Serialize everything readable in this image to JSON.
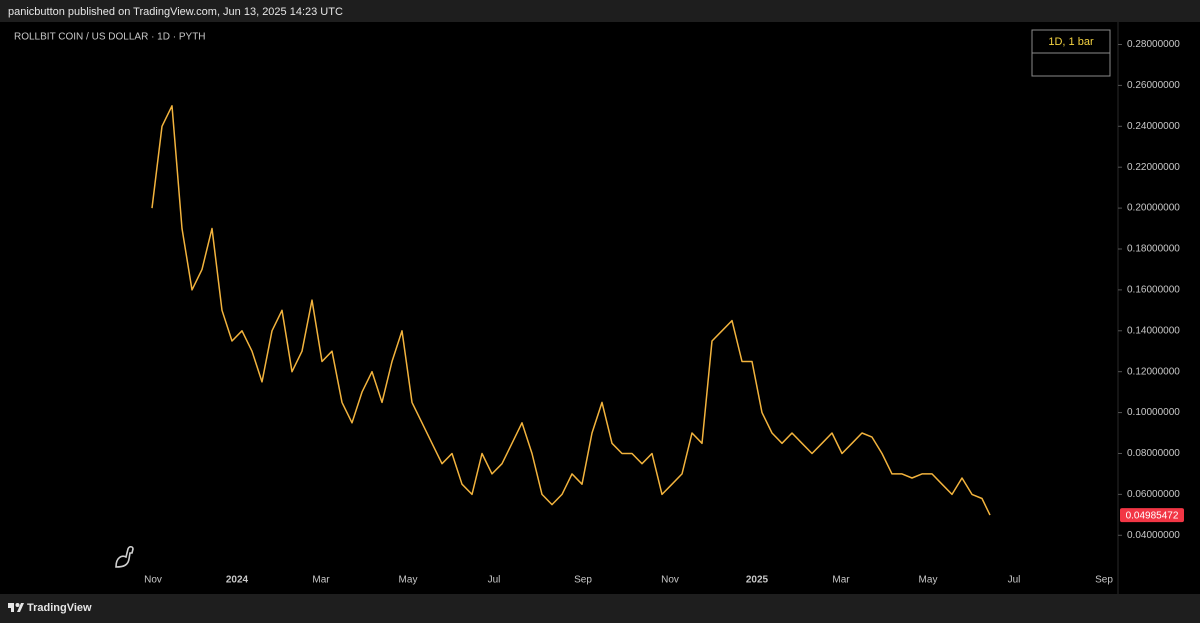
{
  "header": {
    "text": "panicbutton published on TradingView.com, Jun 13, 2025 14:23 UTC"
  },
  "footer": {
    "brand": "TradingView"
  },
  "chart_data": {
    "type": "line",
    "title": "ROLLBIT COIN / US DOLLAR · 1D · PYTH",
    "legend_box": "1D, 1 bar",
    "x": [
      0,
      1,
      2,
      3,
      4,
      5,
      6,
      7,
      8,
      9,
      10,
      11,
      12,
      13,
      14,
      15,
      16,
      17,
      18,
      19,
      20,
      21,
      22,
      23,
      24,
      25,
      26,
      27,
      28,
      29,
      30,
      31,
      32,
      33,
      34,
      35,
      36,
      37,
      38,
      39,
      40,
      41,
      42,
      43,
      44,
      45,
      46,
      47,
      48,
      49,
      50,
      51,
      52,
      53,
      54,
      55,
      56,
      57,
      58,
      59,
      60,
      61,
      62,
      63,
      64,
      65,
      66,
      67,
      68,
      69,
      70,
      71,
      72,
      73,
      74,
      75,
      76,
      77,
      78,
      79,
      80,
      81,
      82,
      83,
      83.8
    ],
    "series": [
      {
        "color": "#f2b33d",
        "values": [
          0.2,
          0.24,
          0.25,
          0.19,
          0.16,
          0.17,
          0.19,
          0.15,
          0.135,
          0.14,
          0.13,
          0.115,
          0.14,
          0.15,
          0.12,
          0.13,
          0.155,
          0.125,
          0.13,
          0.105,
          0.095,
          0.11,
          0.12,
          0.105,
          0.125,
          0.14,
          0.105,
          0.095,
          0.085,
          0.075,
          0.08,
          0.065,
          0.06,
          0.08,
          0.07,
          0.075,
          0.085,
          0.095,
          0.08,
          0.06,
          0.055,
          0.06,
          0.07,
          0.065,
          0.09,
          0.105,
          0.085,
          0.08,
          0.08,
          0.075,
          0.08,
          0.06,
          0.065,
          0.07,
          0.09,
          0.085,
          0.135,
          0.14,
          0.145,
          0.125,
          0.125,
          0.1,
          0.09,
          0.085,
          0.09,
          0.085,
          0.08,
          0.085,
          0.09,
          0.08,
          0.085,
          0.09,
          0.088,
          0.08,
          0.07,
          0.07,
          0.068,
          0.07,
          0.07,
          0.065,
          0.06,
          0.068,
          0.06,
          0.058,
          0.04985472
        ]
      }
    ],
    "last_price_color": "#f23645",
    "xlim": [
      -15.2,
      96.6
    ],
    "xticks": [
      {
        "value": 0.1,
        "label": "Nov"
      },
      {
        "value": 8.5,
        "label": "2024"
      },
      {
        "value": 16.9,
        "label": "Mar"
      },
      {
        "value": 25.6,
        "label": "May"
      },
      {
        "value": 34.2,
        "label": "Jul"
      },
      {
        "value": 43.1,
        "label": "Sep"
      },
      {
        "value": 51.8,
        "label": "Nov"
      },
      {
        "value": 60.5,
        "label": "2025"
      },
      {
        "value": 68.9,
        "label": "Mar"
      },
      {
        "value": 77.6,
        "label": "May"
      },
      {
        "value": 86.2,
        "label": "Jul"
      },
      {
        "value": 95.2,
        "label": "Sep"
      }
    ],
    "ylim": [
      0.024,
      0.291
    ],
    "yticks": [
      {
        "value": 0.04,
        "label": "0.04000000"
      },
      {
        "value": 0.06,
        "label": "0.06000000"
      },
      {
        "value": 0.08,
        "label": "0.08000000"
      },
      {
        "value": 0.1,
        "label": "0.10000000"
      },
      {
        "value": 0.12,
        "label": "0.12000000"
      },
      {
        "value": 0.14,
        "label": "0.14000000"
      },
      {
        "value": 0.16,
        "label": "0.16000000"
      },
      {
        "value": 0.18,
        "label": "0.18000000"
      },
      {
        "value": 0.2,
        "label": "0.20000000"
      },
      {
        "value": 0.22,
        "label": "0.22000000"
      },
      {
        "value": 0.24,
        "label": "0.24000000"
      },
      {
        "value": 0.26,
        "label": "0.26000000"
      },
      {
        "value": 0.28,
        "label": "0.28000000"
      }
    ],
    "grid": false
  }
}
